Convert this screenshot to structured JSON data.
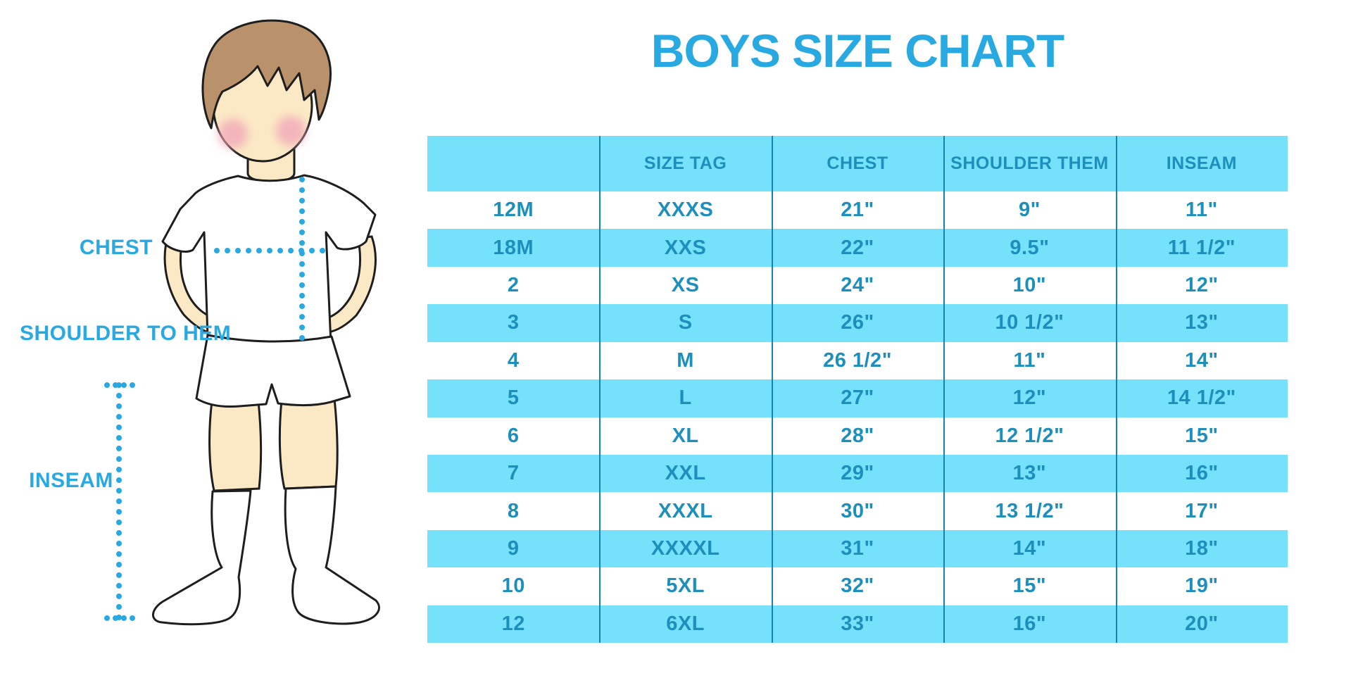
{
  "title": "BOYS SIZE CHART",
  "diagram": {
    "labels": {
      "chest": "CHEST",
      "shoulder_to_hem": "SHOULDER TO HEM",
      "inseam": "INSEAM"
    }
  },
  "table": {
    "columns": [
      "",
      "SIZE TAG",
      "CHEST",
      "SHOULDER THEM",
      "INSEAM"
    ],
    "rows": [
      [
        "12M",
        "XXXS",
        "21\"",
        "9\"",
        "11\""
      ],
      [
        "18M",
        "XXS",
        "22\"",
        "9.5\"",
        "11 1/2\""
      ],
      [
        "2",
        "XS",
        "24\"",
        "10\"",
        "12\""
      ],
      [
        "3",
        "S",
        "26\"",
        "10 1/2\"",
        "13\""
      ],
      [
        "4",
        "M",
        "26 1/2\"",
        "11\"",
        "14\""
      ],
      [
        "5",
        "L",
        "27\"",
        "12\"",
        "14 1/2\""
      ],
      [
        "6",
        "XL",
        "28\"",
        "12 1/2\"",
        "15\""
      ],
      [
        "7",
        "XXL",
        "29\"",
        "13\"",
        "16\""
      ],
      [
        "8",
        "XXXL",
        "30\"",
        "13 1/2\"",
        "17\""
      ],
      [
        "9",
        "XXXXL",
        "31\"",
        "14\"",
        "18\""
      ],
      [
        "10",
        "5XL",
        "32\"",
        "15\"",
        "19\""
      ],
      [
        "12",
        "6XL",
        "33\"",
        "16\"",
        "20\""
      ]
    ]
  },
  "colors": {
    "accent_blue": "#29A9E1",
    "row_cyan": "#75E1FB",
    "table_text": "#1D8FBC",
    "column_separator": "#1583AF",
    "hair": "#B9916B",
    "skin": "#FBE9C5",
    "cheek": "#F2A9B9",
    "outline": "#1E1E1E"
  }
}
